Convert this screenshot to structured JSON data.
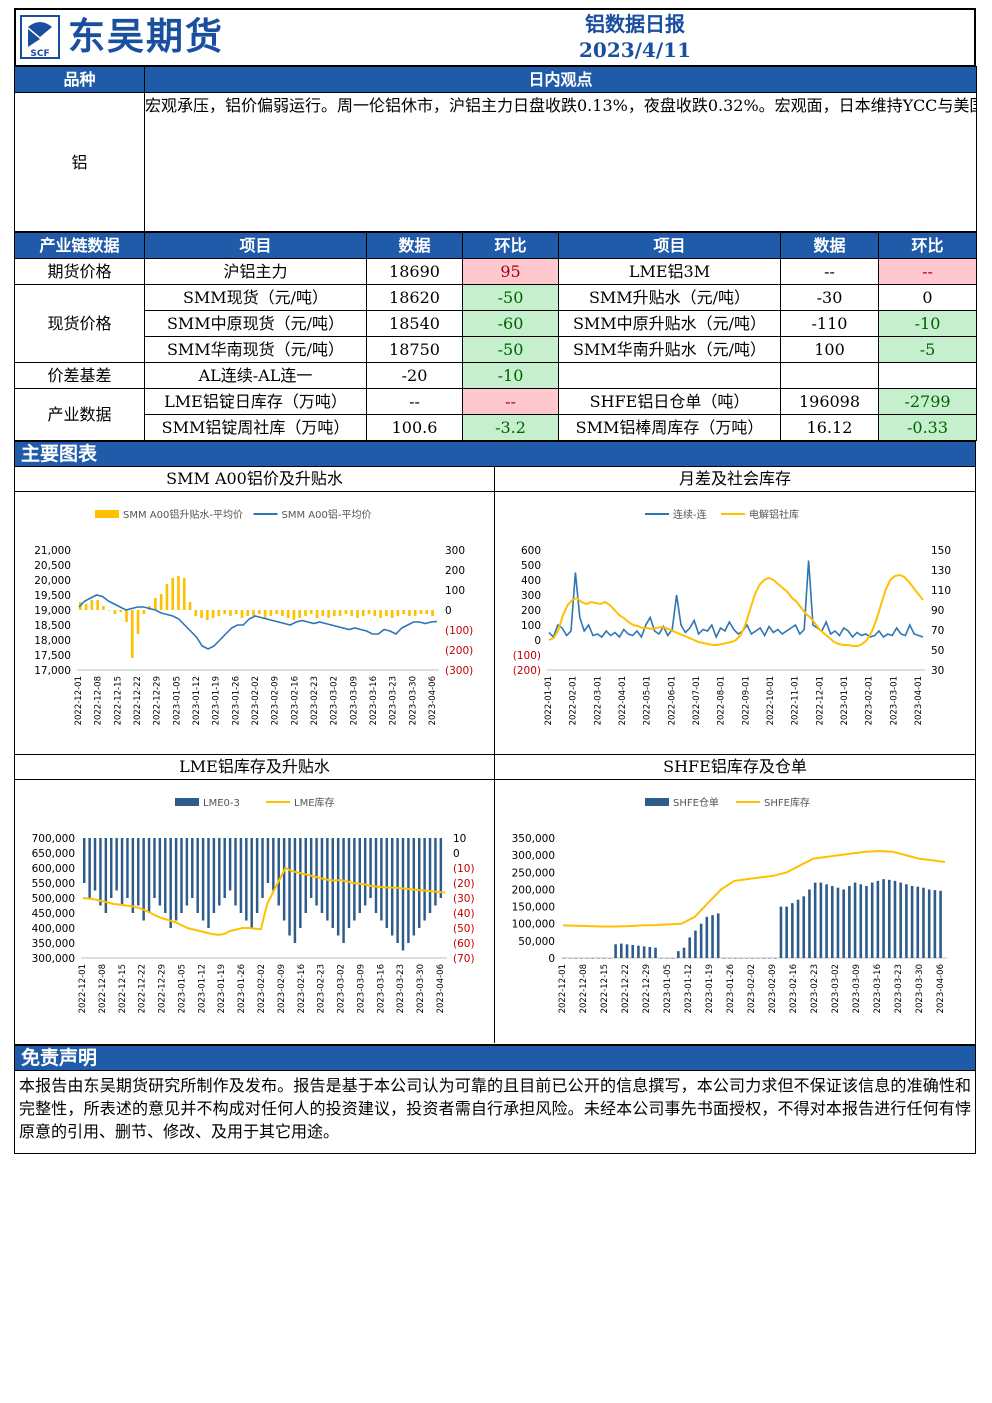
{
  "header": {
    "company": "东吴期货",
    "logo_sub": "SCF",
    "report_title": "铝数据日报",
    "date": "2023/4/11"
  },
  "view": {
    "col1_header": "品种",
    "col2_header": "日内观点",
    "product": "铝",
    "text": "宏观承压，铝价偏弱运行。周一伦铝休市，沪铝主力日盘收跌0.13%，夜盘收跌0.32%。宏观面，日本维持YCC与美国短期通胀预期上升推升美元上涨，有色普遍承压。基本面，供应端，云南暂无进一步减产消息出现，俄铝进口压力长期存在。消费端，初端开工环比持续改善，但汽车订单表现不佳，对合金板块开工形成拖累，总体仍不及往年同期水平。周一SMM电解铝锭社会库存100.6万吨，较上周四库存下降3.2万吨，铸锭减少，铝锭到货量下滑。短期宏观压力加大，基本面驱动不足，上方空间有限。"
  },
  "data_table": {
    "headers": [
      "产业链数据",
      "项目",
      "数据",
      "环比",
      "项目",
      "数据",
      "环比"
    ],
    "rows": [
      {
        "group": "期货价格",
        "l_item": "沪铝主力",
        "l_val": "18690",
        "l_chg": "95",
        "l_chg_color": "red",
        "r_item": "LME铝3M",
        "r_val": "--",
        "r_chg": "--",
        "r_chg_color": "red"
      },
      {
        "group": "现货价格",
        "l_item": "SMM现货（元/吨）",
        "l_val": "18620",
        "l_chg": "-50",
        "l_chg_color": "green",
        "r_item": "SMM升贴水（元/吨）",
        "r_val": "-30",
        "r_chg": "0",
        "r_chg_color": "none"
      },
      {
        "group": "",
        "l_item": "SMM中原现货（元/吨）",
        "l_val": "18540",
        "l_chg": "-60",
        "l_chg_color": "green",
        "r_item": "SMM中原升贴水（元/吨）",
        "r_val": "-110",
        "r_chg": "-10",
        "r_chg_color": "green"
      },
      {
        "group": "",
        "l_item": "SMM华南现货（元/吨）",
        "l_val": "18750",
        "l_chg": "-50",
        "l_chg_color": "green",
        "r_item": "SMM华南升贴水（元/吨）",
        "r_val": "100",
        "r_chg": "-5",
        "r_chg_color": "green"
      },
      {
        "group": "价差基差",
        "l_item": "AL连续-AL连一",
        "l_val": "-20",
        "l_chg": "-10",
        "l_chg_color": "green",
        "r_item": "",
        "r_val": "",
        "r_chg": "",
        "r_chg_color": "none"
      },
      {
        "group": "产业数据",
        "l_item": "LME铝锭日库存（万吨）",
        "l_val": "--",
        "l_chg": "--",
        "l_chg_color": "red",
        "r_item": "SHFE铝日仓单（吨）",
        "r_val": "196098",
        "r_chg": "-2799",
        "r_chg_color": "green"
      },
      {
        "group": "",
        "l_item": "SMM铝锭周社库（万吨）",
        "l_val": "100.6",
        "l_chg": "-3.2",
        "l_chg_color": "green",
        "r_item": "SMM铝棒周库存（万吨）",
        "r_val": "16.12",
        "r_chg": "-0.33",
        "r_chg_color": "green"
      }
    ]
  },
  "charts_section_title": "主要图表",
  "chart_data": [
    {
      "panel_title": "SMM A00铝价及升贴水",
      "type": "bar+line",
      "series": [
        {
          "name": "SMM A00铝升贴水-平均价",
          "kind": "bar",
          "axis": "right",
          "color": "#ffc000",
          "values": [
            40,
            30,
            50,
            50,
            20,
            0,
            -20,
            -10,
            -60,
            -240,
            -120,
            -20,
            20,
            60,
            80,
            130,
            160,
            170,
            160,
            40,
            -30,
            -40,
            -50,
            -40,
            -30,
            -20,
            -30,
            -20,
            -40,
            -30,
            -30,
            -20,
            -40,
            -30,
            -20,
            -30,
            -40,
            -50,
            -40,
            -30,
            -20,
            -40,
            -30,
            -40,
            -30,
            -30,
            -20,
            -30,
            -40,
            -30,
            -20,
            -30,
            -40,
            -30,
            -40,
            -30,
            -20,
            -30,
            -30,
            -20,
            -20,
            -30
          ]
        },
        {
          "name": "SMM A00铝-平均价",
          "kind": "line",
          "axis": "left",
          "color": "#2e75b6",
          "values": [
            19100,
            19300,
            19400,
            19500,
            19450,
            19300,
            19200,
            19100,
            19000,
            19050,
            19100,
            19100,
            19050,
            19000,
            18900,
            18850,
            18800,
            18700,
            18500,
            18300,
            18100,
            17800,
            17700,
            17800,
            18000,
            18200,
            18400,
            18500,
            18500,
            18700,
            18800,
            18750,
            18700,
            18650,
            18600,
            18550,
            18500,
            18600,
            18650,
            18600,
            18550,
            18600,
            18550,
            18500,
            18450,
            18400,
            18350,
            18400,
            18350,
            18300,
            18200,
            18200,
            18350,
            18300,
            18200,
            18400,
            18500,
            18600,
            18600,
            18550,
            18600,
            18620
          ]
        }
      ],
      "left_axis": {
        "min": 17000,
        "max": 21000,
        "ticks": [
          "21,000",
          "20,500",
          "20,000",
          "19,500",
          "19,000",
          "18,500",
          "18,000",
          "17,500",
          "17,000"
        ]
      },
      "right_axis": {
        "min": -300,
        "max": 300,
        "ticks": [
          "300",
          "200",
          "100",
          "0",
          "(100)",
          "(200)",
          "(300)"
        ]
      },
      "x_ticks": [
        "2022-12-01",
        "2022-12-08",
        "2022-12-15",
        "2022-12-22",
        "2022-12-29",
        "2023-01-05",
        "2023-01-12",
        "2023-01-19",
        "2023-01-26",
        "2023-02-02",
        "2023-02-09",
        "2023-02-16",
        "2023-02-23",
        "2023-03-02",
        "2023-03-09",
        "2023-03-16",
        "2023-03-23",
        "2023-03-30",
        "2023-04-06"
      ]
    },
    {
      "panel_title": "月差及社会库存",
      "type": "line",
      "series": [
        {
          "name": "连续-连",
          "axis": "left",
          "color": "#2e75b6",
          "values": [
            50,
            20,
            100,
            80,
            30,
            60,
            450,
            150,
            60,
            100,
            30,
            40,
            20,
            60,
            30,
            50,
            20,
            70,
            40,
            30,
            60,
            20,
            100,
            150,
            60,
            40,
            90,
            30,
            70,
            300,
            100,
            50,
            80,
            130,
            40,
            70,
            60,
            100,
            20,
            80,
            60,
            120,
            70,
            40,
            60,
            100,
            40,
            60,
            80,
            30,
            90,
            50,
            70,
            40,
            60,
            80,
            100,
            40,
            70,
            530,
            100,
            80,
            60,
            120,
            40,
            60,
            30,
            80,
            60,
            20,
            50,
            30,
            40,
            20,
            30,
            60,
            20,
            40,
            30,
            80,
            40,
            30,
            100,
            40,
            30,
            20
          ]
        },
        {
          "name": "电解铝社库",
          "axis": "right",
          "color": "#ffc000",
          "values": [
            60,
            62,
            70,
            85,
            95,
            100,
            102,
            98,
            96,
            98,
            97,
            96,
            98,
            95,
            90,
            85,
            82,
            78,
            75,
            74,
            72,
            72,
            71,
            72,
            73,
            72,
            70,
            68,
            66,
            64,
            62,
            60,
            58,
            57,
            56,
            55,
            55,
            56,
            57,
            58,
            60,
            65,
            75,
            90,
            105,
            115,
            120,
            122,
            120,
            116,
            112,
            108,
            102,
            98,
            92,
            86,
            82,
            76,
            70,
            66,
            62,
            58,
            56,
            55,
            55,
            54,
            54,
            56,
            60,
            68,
            80,
            95,
            110,
            120,
            124,
            125,
            123,
            118,
            112,
            106,
            100
          ]
        }
      ],
      "left_axis": {
        "ticks": [
          "600",
          "500",
          "400",
          "300",
          "200",
          "100",
          "0",
          "(100)",
          "(200)"
        ]
      },
      "right_axis": {
        "ticks": [
          "150",
          "130",
          "110",
          "90",
          "70",
          "50",
          "30"
        ]
      },
      "x_ticks": [
        "2022-01-01",
        "2022-02-01",
        "2022-03-01",
        "2022-04-01",
        "2022-05-01",
        "2022-06-01",
        "2022-07-01",
        "2022-08-01",
        "2022-09-01",
        "2022-10-01",
        "2022-11-01",
        "2022-12-01",
        "2023-01-01",
        "2023-02-01",
        "2023-03-01",
        "2023-04-01"
      ]
    },
    {
      "panel_title": "LME铝库存及升贴水",
      "type": "bar+line",
      "series": [
        {
          "name": "LME0-3",
          "kind": "bar",
          "axis": "right",
          "color": "#2e5c8a",
          "values": [
            -20,
            -30,
            -25,
            -35,
            -40,
            -30,
            -25,
            -35,
            -30,
            -40,
            -35,
            -45,
            -40,
            -30,
            -35,
            -40,
            -50,
            -45,
            -40,
            -35,
            -30,
            -40,
            -45,
            -50,
            -40,
            -35,
            -30,
            -25,
            -35,
            -40,
            -45,
            -50,
            -40,
            -30,
            -20,
            -25,
            -35,
            -45,
            -55,
            -60,
            -50,
            -40,
            -30,
            -35,
            -40,
            -45,
            -50,
            -55,
            -60,
            -50,
            -45,
            -40,
            -35,
            -30,
            -40,
            -45,
            -50,
            -55,
            -60,
            -65,
            -60,
            -55,
            -50,
            -45,
            -40,
            -35,
            -30
          ]
        },
        {
          "name": "LME库存",
          "axis": "left",
          "color": "#ffc000",
          "values": [
            500000,
            498000,
            495000,
            490000,
            485000,
            480000,
            478000,
            475000,
            472000,
            468000,
            460000,
            450000,
            440000,
            432000,
            426000,
            420000,
            410000,
            400000,
            395000,
            390000,
            385000,
            380000,
            377000,
            380000,
            390000,
            395000,
            400000,
            400000,
            398000,
            396000,
            480000,
            520000,
            560000,
            600000,
            590000,
            585000,
            580000,
            575000,
            570000,
            565000,
            560000,
            558000,
            560000,
            555000,
            550000,
            548000,
            545000,
            540000,
            538000,
            536000,
            535000,
            534000,
            532000,
            530000,
            528000,
            526000,
            524000,
            522000,
            520000,
            518000
          ]
        }
      ],
      "left_axis": {
        "ticks": [
          "700,000",
          "650,000",
          "600,000",
          "550,000",
          "500,000",
          "450,000",
          "400,000",
          "350,000",
          "300,000"
        ]
      },
      "right_axis": {
        "ticks": [
          "10",
          "0",
          "(10)",
          "(20)",
          "(30)",
          "(40)",
          "(50)",
          "(60)",
          "(70)"
        ]
      },
      "x_ticks": [
        "2022-12-01",
        "2022-12-08",
        "2022-12-15",
        "2022-12-22",
        "2022-12-29",
        "2023-01-05",
        "2023-01-12",
        "2023-01-19",
        "2023-01-26",
        "2023-02-02",
        "2023-02-09",
        "2023-02-16",
        "2023-02-23",
        "2023-03-02",
        "2023-03-09",
        "2023-03-16",
        "2023-03-23",
        "2023-03-30",
        "2023-04-06"
      ]
    },
    {
      "panel_title": "SHFE铝库存及仓单",
      "type": "bar+line",
      "series": [
        {
          "name": "SHFE仓单",
          "kind": "bar",
          "color": "#2e5c8a",
          "values": [
            0,
            0,
            0,
            0,
            0,
            0,
            0,
            0,
            0,
            40000,
            42000,
            40000,
            38000,
            36000,
            34000,
            32000,
            30000,
            0,
            0,
            0,
            20000,
            30000,
            60000,
            80000,
            100000,
            120000,
            125000,
            130000,
            0,
            0,
            0,
            0,
            0,
            0,
            0,
            0,
            0,
            0,
            150000,
            150000,
            160000,
            170000,
            180000,
            200000,
            220000,
            220000,
            215000,
            210000,
            205000,
            200000,
            210000,
            220000,
            215000,
            210000,
            220000,
            225000,
            230000,
            228000,
            225000,
            220000,
            215000,
            210000,
            208000,
            205000,
            200000,
            198000,
            196098
          ]
        },
        {
          "name": "SHFE库存",
          "color": "#ffc000",
          "values": [
            95000,
            94000,
            93000,
            92000,
            92000,
            93000,
            95000,
            96000,
            98000,
            100000,
            120000,
            160000,
            200000,
            225000,
            230000,
            235000,
            240000,
            250000,
            270000,
            290000,
            295000,
            300000,
            305000,
            310000,
            312000,
            310000,
            300000,
            290000,
            285000,
            280000
          ]
        }
      ],
      "left_axis": {
        "ticks": [
          "350,000",
          "300,000",
          "250,000",
          "200,000",
          "150,000",
          "100,000",
          "50,000",
          "0"
        ]
      },
      "x_ticks": [
        "2022-12-01",
        "2022-12-08",
        "2022-12-15",
        "2022-12-22",
        "2022-12-29",
        "2023-01-05",
        "2023-01-12",
        "2023-01-19",
        "2023-01-26",
        "2023-02-02",
        "2023-02-09",
        "2023-02-16",
        "2023-02-23",
        "2023-03-02",
        "2023-03-09",
        "2023-03-16",
        "2023-03-23",
        "2023-03-30",
        "2023-04-06"
      ]
    }
  ],
  "disclaimer": {
    "title": "免责声明",
    "text": "本报告由东吴期货研究所制作及发布。报告是基于本公司认为可靠的且目前已公开的信息撰写，本公司力求但不保证该信息的准确性和完整性，所表述的意见并不构成对任何人的投资建议，投资者需自行承担风险。未经本公司事先书面授权，不得对本报告进行任何有悖原意的引用、删节、修改、及用于其它用途。"
  },
  "colors": {
    "brand_blue": "#1f5ba8",
    "up_bg": "#ffc7ce",
    "down_bg": "#c6efce"
  }
}
